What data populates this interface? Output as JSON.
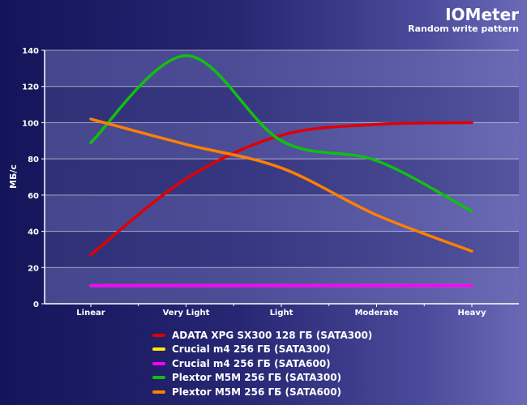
{
  "header": {
    "title": "IOMeter",
    "subtitle": "Random write pattern"
  },
  "chart_data": {
    "type": "line",
    "title": "IOMeter",
    "subtitle": "Random write pattern",
    "xlabel": "",
    "ylabel": "МБ/с",
    "categories": [
      "Linear",
      "Very Light",
      "Light",
      "Moderate",
      "Heavy"
    ],
    "ylim": [
      0,
      140
    ],
    "yticks": [
      0,
      20,
      40,
      60,
      80,
      100,
      120,
      140
    ],
    "grid": true,
    "legend_position": "bottom",
    "series": [
      {
        "name": "ADATA XPG SX300 128 ГБ (SATA300)",
        "color": "#e00000",
        "values": [
          27,
          69,
          93,
          99,
          100
        ]
      },
      {
        "name": "Crucial m4 256 ГБ (SATA300)",
        "color": "#ffee00",
        "values": [
          10,
          10,
          10,
          10,
          10
        ]
      },
      {
        "name": "Crucial m4 256 ГБ (SATA600)",
        "color": "#ff00ff",
        "values": [
          10,
          10,
          10,
          10,
          10
        ]
      },
      {
        "name": "Plextor M5M 256 ГБ (SATA300)",
        "color": "#10c010",
        "values": [
          89,
          137,
          90,
          79,
          51
        ]
      },
      {
        "name": "Plextor M5M 256 ГБ (SATA600)",
        "color": "#ff8000",
        "values": [
          102,
          88,
          75,
          49,
          29
        ]
      }
    ]
  }
}
